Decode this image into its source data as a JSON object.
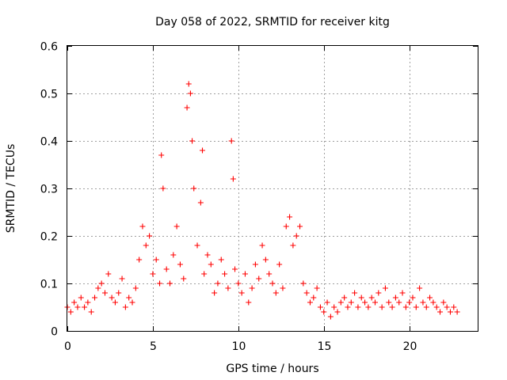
{
  "chart_data": {
    "type": "scatter",
    "title": "Day 058 of 2022, SRMTID for receiver kitg",
    "xlabel": "GPS time / hours",
    "ylabel": "SRMTID / TECUs",
    "xlim": [
      0,
      24
    ],
    "ylim": [
      0,
      0.6
    ],
    "xticks": [
      0,
      5,
      10,
      15,
      20
    ],
    "xtick_labels": [
      "0",
      "5",
      "10",
      "15",
      "20"
    ],
    "yticks": [
      0,
      0.1,
      0.2,
      0.3,
      0.4,
      0.5,
      0.6
    ],
    "ytick_labels": [
      "0",
      "0.1",
      "0.2",
      "0.3",
      "0.4",
      "0.5",
      "0.6"
    ],
    "grid": true,
    "marker": "+",
    "series": [
      {
        "name": "SRMTID kitg",
        "color": "#ff0000",
        "x": [
          0.0,
          0.2,
          0.4,
          0.6,
          0.8,
          1.0,
          1.2,
          1.4,
          1.6,
          1.8,
          2.0,
          2.2,
          2.4,
          2.6,
          2.8,
          3.0,
          3.2,
          3.4,
          3.6,
          3.8,
          4.0,
          4.2,
          4.4,
          4.6,
          4.8,
          5.0,
          5.2,
          5.4,
          5.5,
          5.6,
          5.8,
          6.0,
          6.2,
          6.4,
          6.6,
          6.8,
          7.0,
          7.1,
          7.2,
          7.3,
          7.4,
          7.6,
          7.8,
          7.9,
          8.0,
          8.2,
          8.4,
          8.6,
          8.8,
          9.0,
          9.2,
          9.4,
          9.6,
          9.7,
          9.8,
          10.0,
          10.2,
          10.4,
          10.6,
          10.8,
          11.0,
          11.2,
          11.4,
          11.6,
          11.8,
          12.0,
          12.2,
          12.4,
          12.6,
          12.8,
          13.0,
          13.2,
          13.4,
          13.6,
          13.8,
          14.0,
          14.2,
          14.4,
          14.6,
          14.8,
          15.0,
          15.2,
          15.4,
          15.6,
          15.8,
          16.0,
          16.2,
          16.4,
          16.6,
          16.8,
          17.0,
          17.2,
          17.4,
          17.6,
          17.8,
          18.0,
          18.2,
          18.4,
          18.6,
          18.8,
          19.0,
          19.2,
          19.4,
          19.6,
          19.8,
          20.0,
          20.2,
          20.4,
          20.6,
          20.8,
          21.0,
          21.2,
          21.4,
          21.6,
          21.8,
          22.0,
          22.2,
          22.4,
          22.6,
          22.8
        ],
        "y": [
          0.05,
          0.04,
          0.06,
          0.05,
          0.07,
          0.05,
          0.06,
          0.04,
          0.07,
          0.09,
          0.1,
          0.08,
          0.12,
          0.07,
          0.06,
          0.08,
          0.11,
          0.05,
          0.07,
          0.06,
          0.09,
          0.15,
          0.22,
          0.18,
          0.2,
          0.12,
          0.15,
          0.1,
          0.37,
          0.3,
          0.13,
          0.1,
          0.16,
          0.22,
          0.14,
          0.11,
          0.47,
          0.52,
          0.5,
          0.4,
          0.3,
          0.18,
          0.27,
          0.38,
          0.12,
          0.16,
          0.14,
          0.08,
          0.1,
          0.15,
          0.12,
          0.09,
          0.4,
          0.32,
          0.13,
          0.1,
          0.08,
          0.12,
          0.06,
          0.09,
          0.14,
          0.11,
          0.18,
          0.15,
          0.12,
          0.1,
          0.08,
          0.14,
          0.09,
          0.22,
          0.24,
          0.18,
          0.2,
          0.22,
          0.1,
          0.08,
          0.06,
          0.07,
          0.09,
          0.05,
          0.04,
          0.06,
          0.03,
          0.05,
          0.04,
          0.06,
          0.07,
          0.05,
          0.06,
          0.08,
          0.05,
          0.07,
          0.06,
          0.05,
          0.07,
          0.06,
          0.08,
          0.05,
          0.09,
          0.06,
          0.05,
          0.07,
          0.06,
          0.08,
          0.05,
          0.06,
          0.07,
          0.05,
          0.09,
          0.06,
          0.05,
          0.07,
          0.06,
          0.05,
          0.04,
          0.06,
          0.05,
          0.04,
          0.05,
          0.04
        ]
      }
    ]
  }
}
